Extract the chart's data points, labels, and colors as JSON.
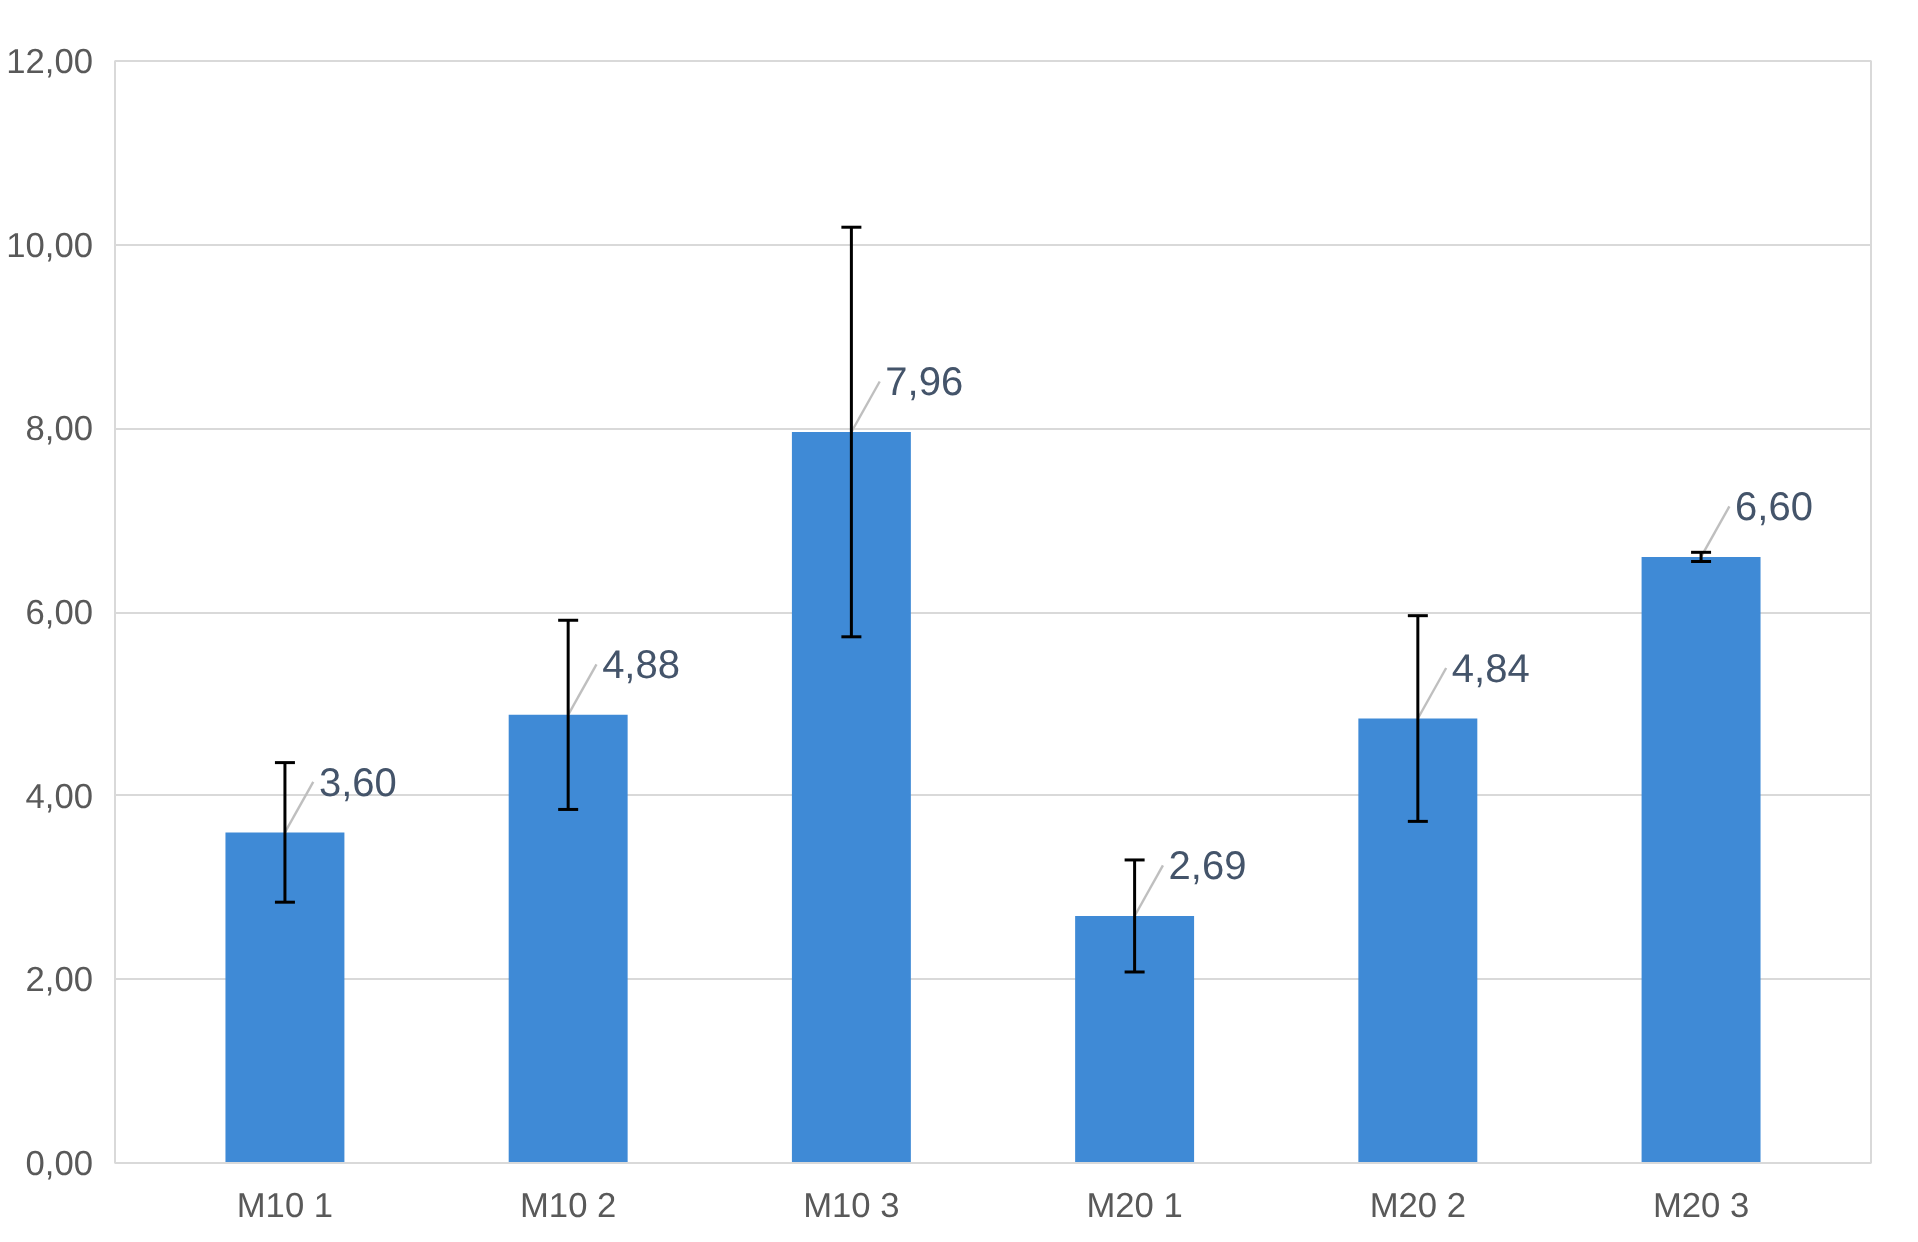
{
  "chart_data": {
    "type": "bar",
    "categories": [
      "M10 1",
      "M10 2",
      "M10 3",
      "M20 1",
      "M20 2",
      "M20 3"
    ],
    "values": [
      3.6,
      4.88,
      7.96,
      2.69,
      4.84,
      6.6
    ],
    "color": "#3f8ad6",
    "errors": [
      0.76,
      1.03,
      2.23,
      0.61,
      1.12,
      0.05
    ],
    "value_labels": [
      "3,60",
      "4,88",
      "7,96",
      "2,69",
      "4,84",
      "6,60"
    ],
    "ylim": [
      0,
      12
    ],
    "yticks": [
      {
        "value": 0,
        "label": "0,00"
      },
      {
        "value": 2,
        "label": "2,00"
      },
      {
        "value": 4,
        "label": "4,00"
      },
      {
        "value": 6,
        "label": "6,00"
      },
      {
        "value": 8,
        "label": "8,00"
      },
      {
        "value": 10,
        "label": "10,00"
      },
      {
        "value": 12,
        "label": "12,00"
      }
    ],
    "grid": "y"
  }
}
